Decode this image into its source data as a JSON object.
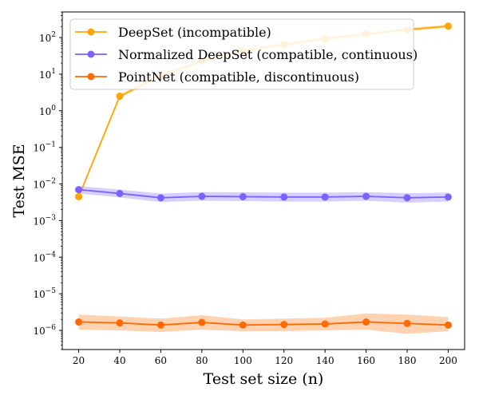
{
  "chart_data": {
    "type": "line",
    "title": "",
    "xlabel": "Test set size (n)",
    "ylabel": "Test MSE",
    "yscale": "log",
    "ylim": [
      3e-07,
      500
    ],
    "xlim": [
      12,
      208
    ],
    "x": [
      20,
      40,
      60,
      80,
      100,
      120,
      140,
      160,
      180,
      200
    ],
    "x_ticks": [
      "20",
      "40",
      "60",
      "80",
      "100",
      "120",
      "140",
      "160",
      "180",
      "200"
    ],
    "y_ticks": [
      {
        "base": "10",
        "exp": "−6",
        "value": 1e-06
      },
      {
        "base": "10",
        "exp": "−5",
        "value": 1e-05
      },
      {
        "base": "10",
        "exp": "−4",
        "value": 0.0001
      },
      {
        "base": "10",
        "exp": "−3",
        "value": 0.001
      },
      {
        "base": "10",
        "exp": "−2",
        "value": 0.01
      },
      {
        "base": "10",
        "exp": "−1",
        "value": 0.1
      },
      {
        "base": "10",
        "exp": "0",
        "value": 1
      },
      {
        "base": "10",
        "exp": "1",
        "value": 10
      },
      {
        "base": "10",
        "exp": "2",
        "value": 100
      }
    ],
    "legend_position": "top-left",
    "series": [
      {
        "name": "DeepSet (incompatible)",
        "color": "#FFA500",
        "values": [
          0.0045,
          2.5,
          9,
          23,
          43,
          65,
          92,
          125,
          165,
          205
        ],
        "band_lower": [
          0.004,
          2.2,
          8,
          20,
          38,
          58,
          82,
          112,
          148,
          185
        ],
        "band_upper": [
          0.005,
          2.8,
          10,
          26,
          48,
          72,
          102,
          138,
          182,
          225
        ]
      },
      {
        "name": "Normalized DeepSet (compatible, continuous)",
        "color": "#7B61FF",
        "values": [
          0.007,
          0.0055,
          0.0042,
          0.0046,
          0.0045,
          0.0044,
          0.0044,
          0.0046,
          0.0042,
          0.0044
        ],
        "band_lower": [
          0.0055,
          0.0043,
          0.0032,
          0.0035,
          0.0034,
          0.0033,
          0.0033,
          0.0035,
          0.0031,
          0.0033
        ],
        "band_upper": [
          0.0088,
          0.007,
          0.0055,
          0.006,
          0.0059,
          0.0058,
          0.0058,
          0.006,
          0.0056,
          0.0058
        ]
      },
      {
        "name": "PointNet (compatible, discontinuous)",
        "color": "#FF6A00",
        "values": [
          1.7e-06,
          1.6e-06,
          1.4e-06,
          1.65e-06,
          1.4e-06,
          1.45e-06,
          1.5e-06,
          1.7e-06,
          1.55e-06,
          1.4e-06
        ],
        "band_lower": [
          1.05e-06,
          1e-06,
          9e-07,
          1.05e-06,
          9.5e-07,
          9.5e-07,
          1e-06,
          1.05e-06,
          8e-07,
          9.5e-07
        ],
        "band_upper": [
          2.7e-06,
          2.4e-06,
          2.1e-06,
          2.6e-06,
          2e-06,
          2.1e-06,
          2.2e-06,
          2.9e-06,
          2.7e-06,
          2.3e-06
        ]
      }
    ]
  }
}
